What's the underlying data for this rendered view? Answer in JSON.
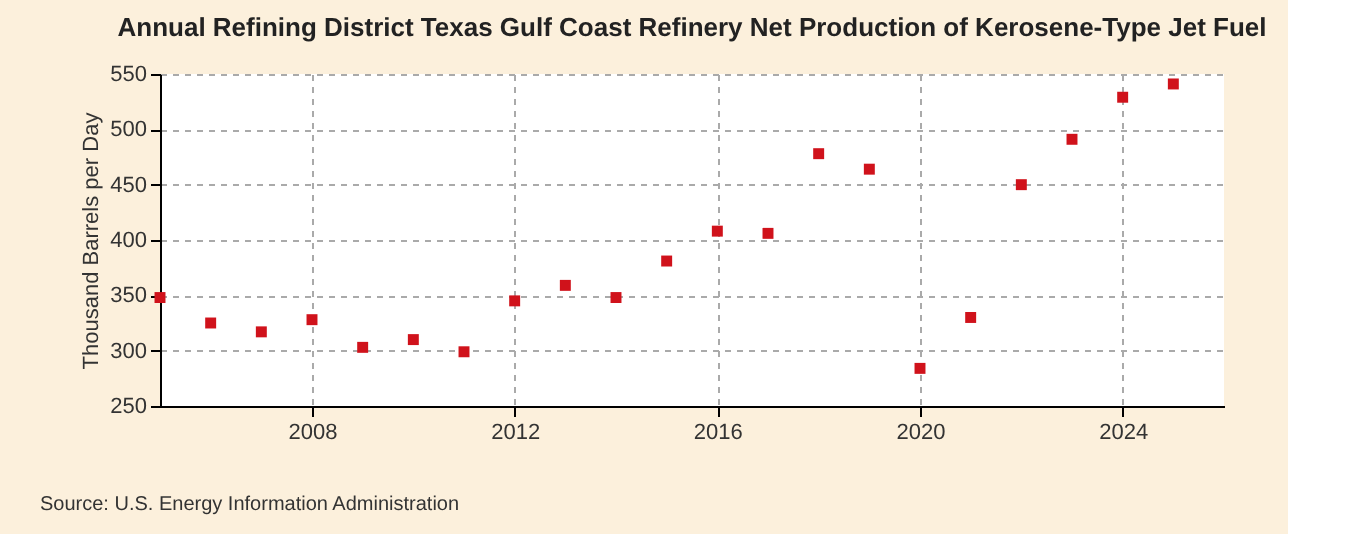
{
  "chart_data": {
    "type": "scatter",
    "title": "Annual Refining District Texas Gulf Coast Refinery Net Production of Kerosene-Type Jet Fuel",
    "ylabel": "Thousand Barrels per Day",
    "x": [
      2005,
      2006,
      2007,
      2008,
      2009,
      2010,
      2011,
      2012,
      2013,
      2014,
      2015,
      2016,
      2017,
      2018,
      2019,
      2020,
      2021,
      2022,
      2023,
      2024,
      2025
    ],
    "series": [
      {
        "color": "#d0121b",
        "values": [
          348,
          325,
          317,
          328,
          303,
          310,
          299,
          345,
          359,
          348,
          381,
          408,
          406,
          478,
          464,
          284,
          330,
          450,
          491,
          529,
          541
        ]
      }
    ],
    "xlim": [
      2005,
      2026
    ],
    "xticks": [
      2008,
      2012,
      2016,
      2020,
      2024
    ],
    "ylim": [
      250,
      550
    ],
    "yticks": [
      250,
      300,
      350,
      400,
      450,
      500,
      550
    ],
    "grid": true,
    "marker": "square",
    "annotations": [
      "Source: U.S. Energy Information Administration"
    ]
  }
}
